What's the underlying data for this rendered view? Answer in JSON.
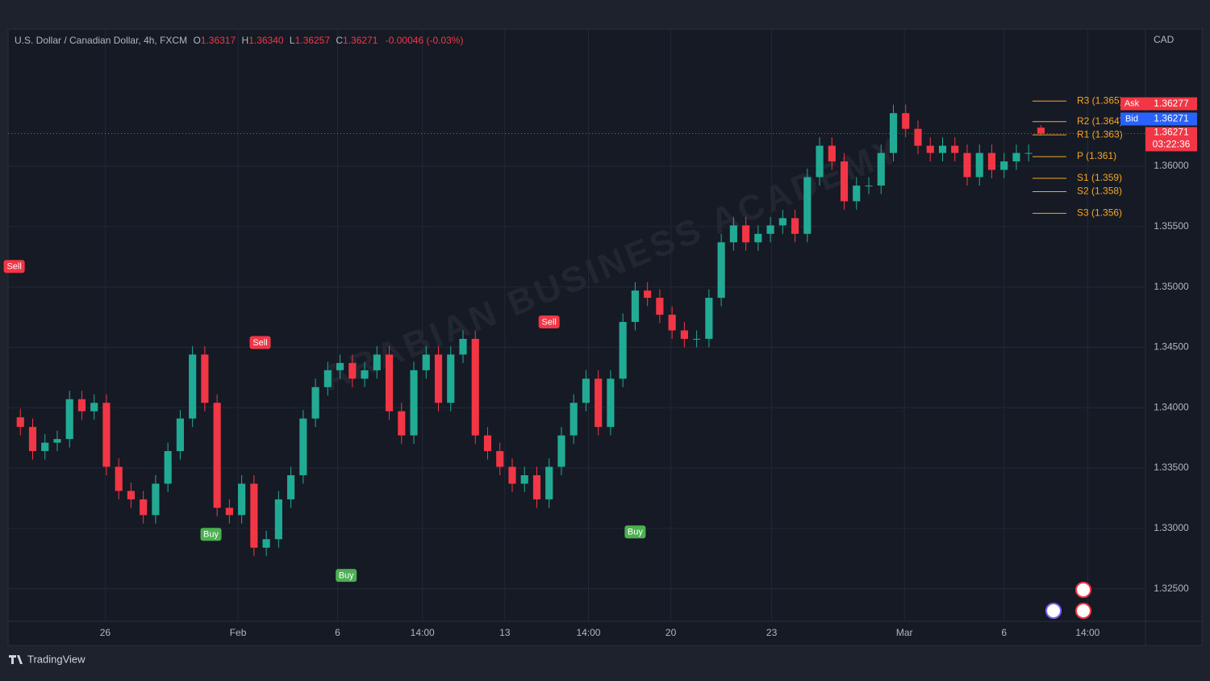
{
  "header": {
    "symbol": "U.S. Dollar / Canadian Dollar, 4h, FXCM",
    "open_label": "O",
    "open": "1.36317",
    "high_label": "H",
    "high": "1.36340",
    "low_label": "L",
    "low": "1.36257",
    "close_label": "C",
    "close": "1.36271",
    "change": "-0.00046 (-0.03%)"
  },
  "footer": "TradingView",
  "chart_data": {
    "type": "candlestick",
    "currency": "CAD",
    "up_color": "#22ab94",
    "down_color": "#f23645",
    "grid": true,
    "watermark": "ARABIAN BUSINESS ACADEMY",
    "open": [
      1.3392,
      1.3384,
      1.3364,
      1.3371,
      1.3374,
      1.3407,
      1.3397,
      1.3404,
      1.3351,
      1.3331,
      1.3324,
      1.3311,
      1.3337,
      1.3364,
      1.3391,
      1.3444,
      1.3404,
      1.3317,
      1.3311,
      1.3337,
      1.3284,
      1.3291,
      1.3324,
      1.3344,
      1.3391,
      1.3417,
      1.3431,
      1.3437,
      1.3424,
      1.3431,
      1.3444,
      1.3397,
      1.3377,
      1.3431,
      1.3444,
      1.3404,
      1.3444,
      1.3457,
      1.3377,
      1.3364,
      1.3351,
      1.3337,
      1.3344,
      1.3324,
      1.3351,
      1.3377,
      1.3404,
      1.3424,
      1.3384,
      1.3424,
      1.3471,
      1.3497,
      1.3491,
      1.3477,
      1.3464,
      1.3457,
      1.3457,
      1.3491,
      1.3537,
      1.3551,
      1.3537,
      1.3544,
      1.3551,
      1.3557,
      1.3544,
      1.3591,
      1.3617,
      1.3604,
      1.3571,
      1.3584,
      1.3584,
      1.3611,
      1.3644,
      1.3631,
      1.3617,
      1.3611,
      1.3617,
      1.3611,
      1.3591,
      1.3611,
      1.3597,
      1.3604,
      1.3611,
      1.3632
    ],
    "high": [
      1.3399,
      1.3391,
      1.3378,
      1.3381,
      1.3414,
      1.3414,
      1.3411,
      1.3411,
      1.3358,
      1.3338,
      1.3331,
      1.3344,
      1.3371,
      1.3398,
      1.3451,
      1.3451,
      1.3411,
      1.3324,
      1.3344,
      1.3344,
      1.3298,
      1.3331,
      1.3351,
      1.3398,
      1.3424,
      1.3438,
      1.3444,
      1.3444,
      1.3438,
      1.3451,
      1.3451,
      1.3404,
      1.3438,
      1.3451,
      1.3451,
      1.3451,
      1.3464,
      1.3464,
      1.3384,
      1.3371,
      1.3358,
      1.3351,
      1.3351,
      1.3358,
      1.3384,
      1.3411,
      1.3431,
      1.3431,
      1.3431,
      1.3478,
      1.3504,
      1.3504,
      1.3498,
      1.3484,
      1.3471,
      1.3464,
      1.3498,
      1.3544,
      1.3558,
      1.3558,
      1.3551,
      1.3558,
      1.3564,
      1.3564,
      1.3598,
      1.3624,
      1.3624,
      1.3611,
      1.3591,
      1.3591,
      1.3618,
      1.3651,
      1.3651,
      1.3638,
      1.3624,
      1.3624,
      1.3624,
      1.3618,
      1.3618,
      1.3618,
      1.3611,
      1.3618,
      1.3618,
      1.3634
    ],
    "low": [
      1.3377,
      1.3357,
      1.3357,
      1.3364,
      1.3367,
      1.339,
      1.339,
      1.3344,
      1.3324,
      1.3317,
      1.3304,
      1.3304,
      1.333,
      1.3357,
      1.3384,
      1.3397,
      1.331,
      1.3304,
      1.3304,
      1.3277,
      1.3277,
      1.3284,
      1.3317,
      1.3337,
      1.3384,
      1.341,
      1.3424,
      1.3417,
      1.3417,
      1.3424,
      1.339,
      1.337,
      1.337,
      1.3424,
      1.3397,
      1.3397,
      1.3437,
      1.337,
      1.3357,
      1.3344,
      1.333,
      1.333,
      1.3317,
      1.3317,
      1.3344,
      1.337,
      1.3397,
      1.3377,
      1.3377,
      1.3417,
      1.3464,
      1.3484,
      1.347,
      1.3457,
      1.345,
      1.345,
      1.345,
      1.3484,
      1.353,
      1.353,
      1.353,
      1.3537,
      1.3544,
      1.3537,
      1.3537,
      1.3584,
      1.3597,
      1.3564,
      1.3564,
      1.3577,
      1.3577,
      1.3604,
      1.3624,
      1.361,
      1.3604,
      1.3604,
      1.3604,
      1.3584,
      1.3584,
      1.359,
      1.359,
      1.3597,
      1.3604,
      1.3626
    ],
    "close": [
      1.3384,
      1.3364,
      1.3371,
      1.3374,
      1.3407,
      1.3397,
      1.3404,
      1.3351,
      1.3331,
      1.3324,
      1.3311,
      1.3337,
      1.3364,
      1.3391,
      1.3444,
      1.3404,
      1.3317,
      1.3311,
      1.3337,
      1.3284,
      1.3291,
      1.3324,
      1.3344,
      1.3391,
      1.3417,
      1.3431,
      1.3437,
      1.3424,
      1.3431,
      1.3444,
      1.3397,
      1.3377,
      1.3431,
      1.3444,
      1.3404,
      1.3444,
      1.3457,
      1.3377,
      1.3364,
      1.3351,
      1.3337,
      1.3344,
      1.3324,
      1.3351,
      1.3377,
      1.3404,
      1.3424,
      1.3384,
      1.3424,
      1.3471,
      1.3497,
      1.3491,
      1.3477,
      1.3464,
      1.3457,
      1.3457,
      1.3491,
      1.3537,
      1.3551,
      1.3537,
      1.3544,
      1.3551,
      1.3557,
      1.3544,
      1.3591,
      1.3617,
      1.3604,
      1.3571,
      1.3584,
      1.3584,
      1.3611,
      1.3644,
      1.3631,
      1.3617,
      1.3611,
      1.3617,
      1.3611,
      1.3591,
      1.3611,
      1.3597,
      1.3604,
      1.3611,
      1.3611,
      1.3627
    ],
    "xlim": [
      0,
      92.5
    ],
    "xticks": [
      {
        "value": 7.9,
        "label": "26"
      },
      {
        "value": 18.7,
        "label": "Feb"
      },
      {
        "value": 26.8,
        "label": "6"
      },
      {
        "value": 33.7,
        "label": "14:00"
      },
      {
        "value": 40.4,
        "label": "13"
      },
      {
        "value": 47.2,
        "label": "14:00"
      },
      {
        "value": 53.9,
        "label": "20"
      },
      {
        "value": 62.1,
        "label": "23"
      },
      {
        "value": 72.9,
        "label": "Mar"
      },
      {
        "value": 81.0,
        "label": "6"
      },
      {
        "value": 87.8,
        "label": "14:00"
      }
    ],
    "ylim": [
      1.3223,
      1.3711
    ],
    "yticks": [
      {
        "value": 1.325,
        "label": "1.32500"
      },
      {
        "value": 1.33,
        "label": "1.33000"
      },
      {
        "value": 1.335,
        "label": "1.33500"
      },
      {
        "value": 1.34,
        "label": "1.34000"
      },
      {
        "value": 1.345,
        "label": "1.34500"
      },
      {
        "value": 1.35,
        "label": "1.35000"
      },
      {
        "value": 1.355,
        "label": "1.35500"
      },
      {
        "value": 1.36,
        "label": "1.36000"
      }
    ],
    "pivots": [
      {
        "value": 1.3654,
        "label": "R3 (1.365)"
      },
      {
        "value": 1.3637,
        "label": "R2 (1.364)"
      },
      {
        "value": 1.3626,
        "label": "R1 (1.363)"
      },
      {
        "value": 1.3608,
        "label": "P (1.361)"
      },
      {
        "value": 1.359,
        "label": "S1 (1.359)"
      },
      {
        "value": 1.3579,
        "label": "S2 (1.358)"
      },
      {
        "value": 1.3561,
        "label": "S3 (1.356)"
      }
    ],
    "pivot_color": "#f5a623",
    "signals": [
      {
        "label": "Sell",
        "x": 0.5,
        "y": 1.3517,
        "color": "#f23645"
      },
      {
        "label": "Sell",
        "x": 20.5,
        "y": 1.3454,
        "color": "#f23645"
      },
      {
        "label": "Sell",
        "x": 44,
        "y": 1.3471,
        "color": "#f23645"
      },
      {
        "label": "Buy",
        "x": 16.5,
        "y": 1.3295,
        "color": "#4caf50"
      },
      {
        "label": "Buy",
        "x": 27.5,
        "y": 1.3261,
        "color": "#4caf50"
      },
      {
        "label": "Buy",
        "x": 51,
        "y": 1.3297,
        "color": "#4caf50"
      }
    ],
    "price_tags": [
      {
        "label": "Ask",
        "value": 1.36277,
        "color": "#f23645"
      },
      {
        "label": "Bid",
        "value": 1.36271,
        "color": "#2962ff"
      }
    ],
    "last_price": {
      "value": 1.36271,
      "countdown": "03:22:36",
      "color": "#f23645"
    }
  }
}
